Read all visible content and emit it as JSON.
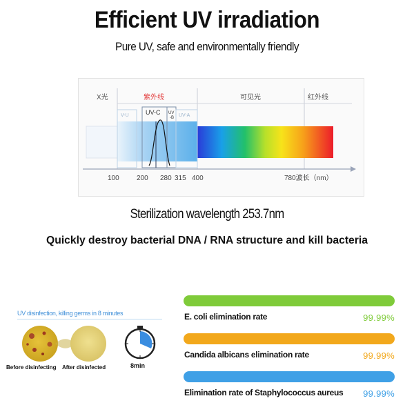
{
  "header": {
    "title": "Efficient UV irradiation",
    "subtitle": "Pure UV, safe and environmentally friendly"
  },
  "spectrum": {
    "regions": {
      "xray": "X光",
      "uv": "紫外线",
      "visible": "可见光",
      "ir": "红外线"
    },
    "bands": {
      "uvd": "V-U",
      "uvc": "UV-C",
      "uvb": "UV\n-B",
      "uva": "UV-A"
    },
    "ticks": [
      "100",
      "200",
      "280",
      "315",
      "400",
      "780波长（nm）"
    ],
    "colors": {
      "uv_label": "#e23b3b",
      "axis": "#9aa4b8"
    }
  },
  "info": {
    "wavelength": "Sterilization wavelength 253.7nm",
    "kill_text": "Quickly destroy bacterial DNA / RNA structure and kill bacteria"
  },
  "left_panel": {
    "heading": "UV disinfection, killing germs in 8 minutes",
    "before_label": "Before disinfecting",
    "after_label": "After disinfected",
    "timer_label": "8min"
  },
  "rates": [
    {
      "label": "E. coli elimination rate",
      "value": "99.99%",
      "color": "#7fcb3a"
    },
    {
      "label": "Candida albicans elimination rate",
      "value": "99.99%",
      "color": "#f2a81c"
    },
    {
      "label": "Elimination rate of Staphylococcus aureus",
      "value": "99.99%",
      "color": "#3fa0e6"
    }
  ]
}
